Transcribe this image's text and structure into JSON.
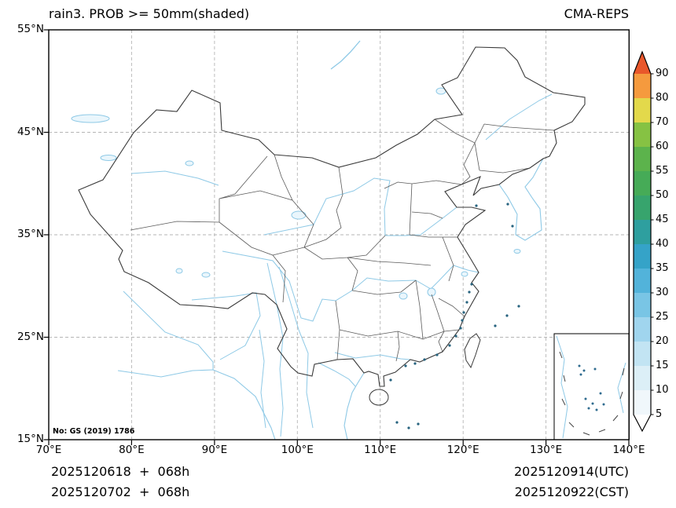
{
  "header": {
    "title": "rain3. PROB >= 50mm(shaded)",
    "model": "CMA-REPS"
  },
  "axes": {
    "lat_labels": [
      "55°N",
      "45°N",
      "35°N",
      "25°N",
      "15°N"
    ],
    "lon_labels": [
      "70°E",
      "80°E",
      "90°E",
      "100°E",
      "110°E",
      "120°E",
      "130°E",
      "140°E"
    ]
  },
  "colorbar": {
    "tick_labels": [
      "5",
      "10",
      "15",
      "20",
      "25",
      "30",
      "35",
      "40",
      "45",
      "50",
      "55",
      "60",
      "70",
      "80",
      "90"
    ],
    "colors_bottom_to_top": [
      "#ffffff",
      "#f0f7fb",
      "#dceff7",
      "#c2e4f3",
      "#a0d5ee",
      "#79c5e5",
      "#52b3da",
      "#35a3c8",
      "#2e9f9f",
      "#37a46d",
      "#46ab57",
      "#5cb34c",
      "#86c243",
      "#e3d94b",
      "#f59a3e",
      "#e9572b"
    ]
  },
  "map": {
    "note": "No: GS (2019) 1786"
  },
  "footer": {
    "left_lines": [
      "2025120618  +  068h",
      "2025120702  +  068h"
    ],
    "right_lines": [
      "2025120914(UTC)",
      "2025120922(CST)"
    ]
  },
  "chart_data": {
    "type": "heatmap",
    "title": "rain3. PROB >= 50mm(shaded)",
    "source_label": "CMA-REPS",
    "x_axis": {
      "label": "longitude",
      "range": [
        70,
        140
      ],
      "ticks": [
        70,
        80,
        90,
        100,
        110,
        120,
        130,
        140
      ],
      "tick_labels": [
        "70°E",
        "80°E",
        "90°E",
        "100°E",
        "110°E",
        "120°E",
        "130°E",
        "140°E"
      ]
    },
    "y_axis": {
      "label": "latitude",
      "range": [
        15,
        55
      ],
      "ticks": [
        55,
        45,
        35,
        25,
        15
      ],
      "tick_labels": [
        "55°N",
        "45°N",
        "35°N",
        "25°N",
        "15°N"
      ]
    },
    "colorbar_levels": [
      5,
      10,
      15,
      20,
      25,
      30,
      35,
      40,
      45,
      50,
      55,
      60,
      70,
      80,
      90
    ],
    "colorbar_colors_bottom_to_top": [
      "#ffffff",
      "#f0f7fb",
      "#dceff7",
      "#c2e4f3",
      "#a0d5ee",
      "#79c5e5",
      "#52b3da",
      "#35a3c8",
      "#2e9f9f",
      "#37a46d",
      "#46ab57",
      "#5cb34c",
      "#86c243",
      "#e3d94b",
      "#f59a3e",
      "#e9572b"
    ],
    "shaded_field": "no shaded probability areas >= 5% visible; base map of China only",
    "init_left_lines": [
      "2025120618  +  068h",
      "2025120702  +  068h"
    ],
    "valid_right_lines": [
      "2025120914(UTC)",
      "2025120922(CST)"
    ],
    "map_note": "No: GS (2019) 1786",
    "grid": "dashed gray every 10 degrees",
    "legend_position": "right vertical colorbar with end arrows"
  }
}
